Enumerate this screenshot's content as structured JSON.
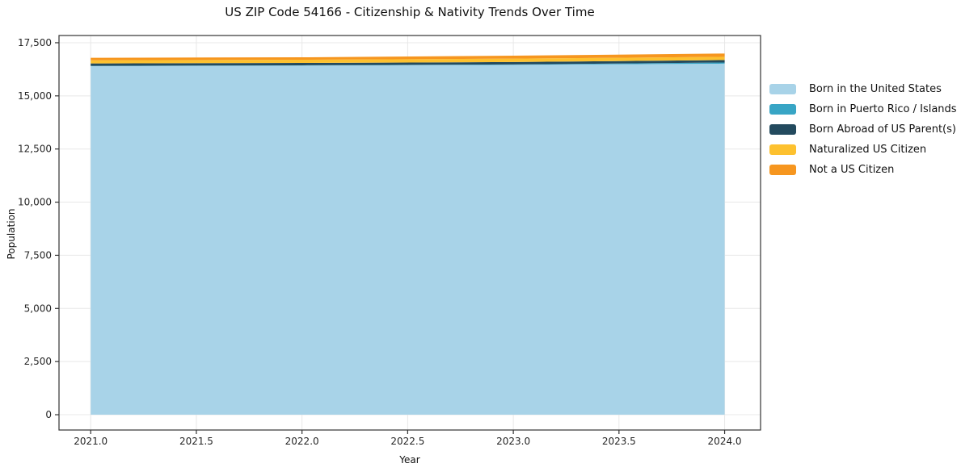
{
  "chart_data": {
    "type": "area",
    "stacked": true,
    "title": "US ZIP Code 54166 - Citizenship & Nativity Trends Over Time",
    "xlabel": "Year",
    "ylabel": "Population",
    "x": [
      2021,
      2022,
      2023,
      2024
    ],
    "series": [
      {
        "name": "Born in the United States",
        "color": "#a8d3e8",
        "values": [
          16400,
          16425,
          16460,
          16515
        ]
      },
      {
        "name": "Born in Puerto Rico / Islands",
        "color": "#38a5c5",
        "values": [
          10,
          12,
          18,
          55
        ]
      },
      {
        "name": "Born Abroad of US Parent(s)",
        "color": "#234a5e",
        "values": [
          115,
          113,
          112,
          115
        ]
      },
      {
        "name": "Naturalized US Citizen",
        "color": "#fdc12f",
        "values": [
          150,
          150,
          162,
          152
        ]
      },
      {
        "name": "Not a US Citizen",
        "color": "#f6961f",
        "values": [
          115,
          115,
          140,
          155
        ]
      }
    ],
    "totals": [
      16790,
      16815,
      16892,
      16992
    ],
    "xlim": [
      2020.85,
      2024.17
    ],
    "ylim": [
      -720,
      17840
    ],
    "xticks": {
      "values": [
        2021.0,
        2021.5,
        2022.0,
        2022.5,
        2023.0,
        2023.5,
        2024.0
      ],
      "labels": [
        "2021.0",
        "2021.5",
        "2022.0",
        "2022.5",
        "2023.0",
        "2023.5",
        "2024.0"
      ]
    },
    "yticks": {
      "values": [
        0,
        2500,
        5000,
        7500,
        10000,
        12500,
        15000,
        17500
      ],
      "labels": [
        "0",
        "2,500",
        "5,000",
        "7,500",
        "10,000",
        "12,500",
        "15,000",
        "17,500"
      ]
    },
    "grid": true,
    "legend_position": "outside-right"
  },
  "colors": {
    "grid": "#e8e8e8",
    "spine": "#333333",
    "tick": "#333333",
    "text": "#262626",
    "background": "#ffffff"
  }
}
